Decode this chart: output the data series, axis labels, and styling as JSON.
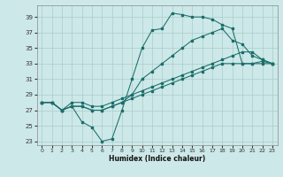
{
  "xlabel": "Humidex (Indice chaleur)",
  "bg_color": "#cde8e8",
  "grid_color": "#aacccc",
  "line_color": "#1a6e6a",
  "xlim": [
    -0.5,
    23.5
  ],
  "ylim": [
    22.5,
    40.5
  ],
  "yticks": [
    23,
    25,
    27,
    29,
    31,
    33,
    35,
    37,
    39
  ],
  "xticks": [
    0,
    1,
    2,
    3,
    4,
    5,
    6,
    7,
    8,
    9,
    10,
    11,
    12,
    13,
    14,
    15,
    16,
    17,
    18,
    19,
    20,
    21,
    22,
    23
  ],
  "lines": [
    {
      "x": [
        0,
        1,
        2,
        3,
        4,
        5,
        6,
        7,
        8,
        9,
        10,
        11,
        12,
        13,
        14,
        15,
        16,
        17,
        18,
        19,
        20,
        21,
        22,
        23
      ],
      "y": [
        28,
        28,
        27,
        27.5,
        25.5,
        24.8,
        23,
        23.3,
        27,
        31,
        35,
        37.3,
        37.5,
        39.5,
        39.3,
        39,
        39,
        38.7,
        38,
        37.5,
        33,
        33,
        33.3,
        33
      ]
    },
    {
      "x": [
        0,
        1,
        2,
        3,
        4,
        5,
        6,
        7,
        8,
        9,
        10,
        11,
        12,
        13,
        14,
        15,
        16,
        17,
        18,
        19,
        20,
        21,
        22,
        23
      ],
      "y": [
        28,
        28,
        27,
        27.5,
        27.5,
        27,
        27,
        27.5,
        28,
        29,
        31,
        32,
        33,
        34,
        35,
        36,
        36.5,
        37,
        37.5,
        36,
        35.5,
        34,
        33.5,
        33
      ]
    },
    {
      "x": [
        0,
        1,
        2,
        3,
        4,
        5,
        6,
        7,
        8,
        9,
        10,
        11,
        12,
        13,
        14,
        15,
        16,
        17,
        18,
        19,
        20,
        21,
        22,
        23
      ],
      "y": [
        28,
        28,
        27,
        28,
        28,
        27.5,
        27.5,
        28,
        28.5,
        29,
        29.5,
        30,
        30.5,
        31,
        31.5,
        32,
        32.5,
        33,
        33.5,
        34,
        34.5,
        34.5,
        33.5,
        33
      ]
    },
    {
      "x": [
        0,
        1,
        2,
        3,
        4,
        5,
        6,
        7,
        8,
        9,
        10,
        11,
        12,
        13,
        14,
        15,
        16,
        17,
        18,
        19,
        20,
        21,
        22,
        23
      ],
      "y": [
        28,
        28,
        27,
        27.5,
        27.5,
        27,
        27,
        27.5,
        28,
        28.5,
        29,
        29.5,
        30,
        30.5,
        31,
        31.5,
        32,
        32.5,
        33,
        33,
        33,
        33,
        33,
        33
      ]
    }
  ]
}
